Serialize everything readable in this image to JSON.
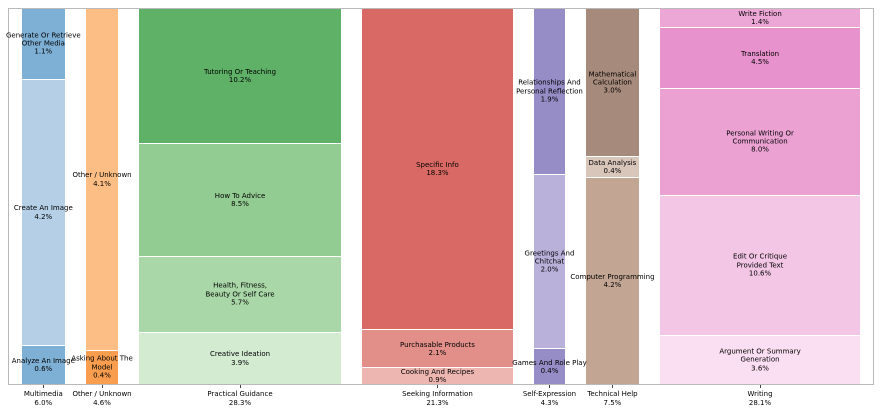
{
  "chart_data": {
    "type": "mosaic",
    "title": "",
    "xlabel": "",
    "ylabel": "",
    "legend": "none",
    "grid": false,
    "note": "Column widths proportional to category totals; segment heights proportional to subcategory share within each full-height column.",
    "columns": [
      {
        "name": "Multimedia",
        "total": 6.0,
        "total_label": "6.0%",
        "segments": [
          {
            "label": "Generate Or Retrieve Other Media",
            "lines": [
              "Generate Or Retrieve",
              "Other Media"
            ],
            "pct": "1.1%",
            "value": 1.1,
            "color": "#7eafd4"
          },
          {
            "label": "Create An Image",
            "lines": [
              "Create An Image"
            ],
            "pct": "4.2%",
            "value": 4.2,
            "color": "#b4cfe6"
          },
          {
            "label": "Analyze An Image",
            "lines": [
              "Analyze An Image"
            ],
            "pct": "0.6%",
            "value": 0.6,
            "color": "#7eafd4"
          }
        ]
      },
      {
        "name": "Other / Unknown",
        "total": 4.6,
        "total_label": "4.6%",
        "segments": [
          {
            "label": "Other / Unknown",
            "lines": [
              "Other / Unknown"
            ],
            "pct": "4.1%",
            "value": 4.1,
            "color": "#fcbe84"
          },
          {
            "label": "Asking About The Model",
            "lines": [
              "Asking About The",
              "Model"
            ],
            "pct": "0.4%",
            "value": 0.4,
            "color": "#f99e4f"
          }
        ]
      },
      {
        "name": "Practical Guidance",
        "total": 28.3,
        "total_label": "28.3%",
        "segments": [
          {
            "label": "Tutoring Or Teaching",
            "lines": [
              "Tutoring Or Teaching"
            ],
            "pct": "10.2%",
            "value": 10.2,
            "color": "#5eb167"
          },
          {
            "label": "How To Advice",
            "lines": [
              "How To Advice"
            ],
            "pct": "8.5%",
            "value": 8.5,
            "color": "#93cc92"
          },
          {
            "label": "Health, Fitness, Beauty Or Self Care",
            "lines": [
              "Health, Fitness,",
              "Beauty Or Self Care"
            ],
            "pct": "5.7%",
            "value": 5.7,
            "color": "#a9d7a7"
          },
          {
            "label": "Creative Ideation",
            "lines": [
              "Creative Ideation"
            ],
            "pct": "3.9%",
            "value": 3.9,
            "color": "#d2ebd1"
          }
        ]
      },
      {
        "name": "Seeking Information",
        "total": 21.3,
        "total_label": "21.3%",
        "segments": [
          {
            "label": "Specific Info",
            "lines": [
              "Specific Info"
            ],
            "pct": "18.3%",
            "value": 18.3,
            "color": "#d96964"
          },
          {
            "label": "Purchasable Products",
            "lines": [
              "Purchasable Products"
            ],
            "pct": "2.1%",
            "value": 2.1,
            "color": "#e28f8a"
          },
          {
            "label": "Cooking And Recipes",
            "lines": [
              "Cooking And Recipes"
            ],
            "pct": "0.9%",
            "value": 0.9,
            "color": "#eeb6b1"
          }
        ]
      },
      {
        "name": "Self-Expression",
        "total": 4.3,
        "total_label": "4.3%",
        "segments": [
          {
            "label": "Relationships And Personal Reflection",
            "lines": [
              "Relationships And",
              "Personal Reflection"
            ],
            "pct": "1.9%",
            "value": 1.9,
            "color": "#968cc6"
          },
          {
            "label": "Greetings And Chitchat",
            "lines": [
              "Greetings And",
              "Chitchat"
            ],
            "pct": "2.0%",
            "value": 2.0,
            "color": "#bab1da"
          },
          {
            "label": "Games And Role Play",
            "lines": [
              "Games And Role Play"
            ],
            "pct": "0.4%",
            "value": 0.4,
            "color": "#968cc6"
          }
        ]
      },
      {
        "name": "Technical Help",
        "total": 7.5,
        "total_label": "7.5%",
        "segments": [
          {
            "label": "Mathematical Calculation",
            "lines": [
              "Mathematical",
              "Calculation"
            ],
            "pct": "3.0%",
            "value": 3.0,
            "color": "#a68a7b"
          },
          {
            "label": "Data Analysis",
            "lines": [
              "Data Analysis"
            ],
            "pct": "0.4%",
            "value": 0.4,
            "color": "#d9c6bb"
          },
          {
            "label": "Computer Programming",
            "lines": [
              "Computer Programming"
            ],
            "pct": "4.2%",
            "value": 4.2,
            "color": "#c2a593"
          }
        ]
      },
      {
        "name": "Writing",
        "total": 28.1,
        "total_label": "28.1%",
        "segments": [
          {
            "label": "Write Fiction",
            "lines": [
              "Write Fiction"
            ],
            "pct": "1.4%",
            "value": 1.4,
            "color": "#eda7d7"
          },
          {
            "label": "Translation",
            "lines": [
              "Translation"
            ],
            "pct": "4.5%",
            "value": 4.5,
            "color": "#e792cc"
          },
          {
            "label": "Personal Writing Or Communication",
            "lines": [
              "Personal Writing Or",
              "Communication"
            ],
            "pct": "8.0%",
            "value": 8.0,
            "color": "#eba2d3"
          },
          {
            "label": "Edit Or Critique Provided Text",
            "lines": [
              "Edit Or Critique",
              "Provided Text"
            ],
            "pct": "10.6%",
            "value": 10.6,
            "color": "#f3c6e6"
          },
          {
            "label": "Argument Or Summary Generation",
            "lines": [
              "Argument Or Summary",
              "Generation"
            ],
            "pct": "3.6%",
            "value": 3.6,
            "color": "#fadef2"
          }
        ]
      }
    ]
  }
}
